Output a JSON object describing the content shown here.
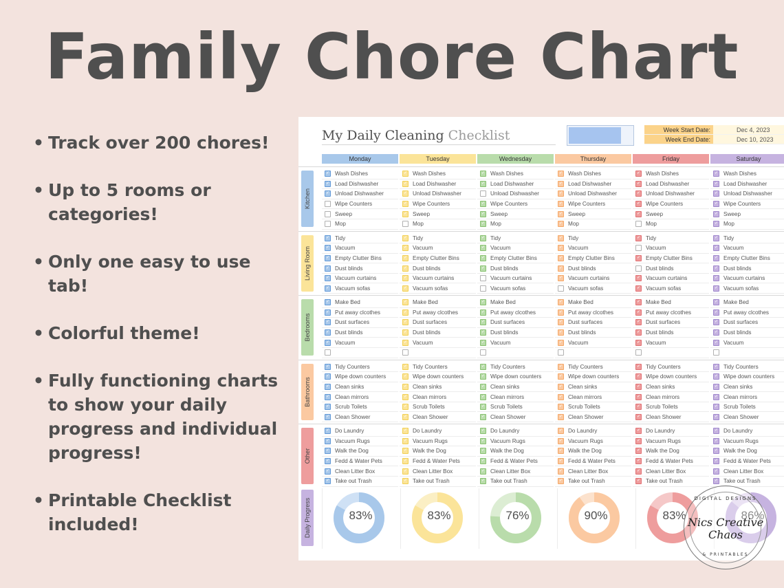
{
  "headline": "Family Chore Chart",
  "bullets": [
    "Track over 200 chores!",
    "Up to 5 rooms or categories!",
    "Only one easy to use tab!",
    "Colorful theme!",
    "Fully functioning charts to show your daily progress and individual progress!",
    "Printable Checklist included!"
  ],
  "sheet": {
    "title_main": "My Daily Cleaning",
    "title_muted": "Checklist",
    "week_start_label": "Week Start Date:",
    "week_start_value": "Dec 4, 2023",
    "week_end_label": "Week End Date:",
    "week_end_value": "Dec 10, 2023",
    "swatch_color": "#a6c4ef"
  },
  "days": [
    {
      "label": "Monday",
      "color": "#a8c8ea",
      "dark": "#5f97d6",
      "light": "#cfe1f5"
    },
    {
      "label": "Tuesday",
      "color": "#fbe499",
      "dark": "#f1cf52",
      "light": "#fbefc4"
    },
    {
      "label": "Wednesday",
      "color": "#b9dcab",
      "dark": "#86c06e",
      "light": "#dcedd3"
    },
    {
      "label": "Thursday",
      "color": "#fbc9a1",
      "dark": "#f5a766",
      "light": "#fce2cd"
    },
    {
      "label": "Friday",
      "color": "#ee9d9d",
      "dark": "#e06f72",
      "light": "#f5c8c8"
    },
    {
      "label": "Saturday",
      "color": "#c6b3e0",
      "dark": "#9e86cc",
      "light": "#e0d4ef"
    }
  ],
  "rooms": [
    {
      "name": "Kitchen",
      "color": "#a8c8ea",
      "chores": [
        "Wash Dishes",
        "Load Dishwasher",
        "Unload Dishwasher",
        "Wipe Counters",
        "Sweep",
        "Mop"
      ],
      "checked": [
        [
          1,
          1,
          1,
          0,
          0,
          0
        ],
        [
          1,
          1,
          1,
          1,
          1,
          0
        ],
        [
          1,
          1,
          0,
          1,
          1,
          1
        ],
        [
          1,
          1,
          1,
          1,
          1,
          1
        ],
        [
          1,
          1,
          1,
          1,
          1,
          0
        ],
        [
          1,
          1,
          1,
          1,
          1,
          1
        ]
      ]
    },
    {
      "name": "Living Room",
      "color": "#fbe499",
      "chores": [
        "Tidy",
        "Vacuum",
        "Empty Clutter Bins",
        "Dust blinds",
        "Vacuum curtains",
        "Vacuum sofas"
      ],
      "checked": [
        [
          1,
          1,
          1,
          1,
          1,
          1
        ],
        [
          1,
          1,
          1,
          1,
          1,
          1
        ],
        [
          1,
          1,
          1,
          1,
          0,
          0
        ],
        [
          1,
          1,
          1,
          1,
          1,
          0
        ],
        [
          1,
          0,
          1,
          0,
          1,
          1
        ],
        [
          1,
          1,
          1,
          1,
          1,
          1
        ]
      ]
    },
    {
      "name": "Bedrooms",
      "color": "#b9dcab",
      "chores": [
        "Make Bed",
        "Put away clcothes",
        "Dust surfaces",
        "Dust blinds",
        "Vacuum",
        ""
      ],
      "checked": [
        [
          1,
          1,
          1,
          1,
          1,
          0
        ],
        [
          1,
          1,
          1,
          1,
          1,
          0
        ],
        [
          1,
          1,
          1,
          1,
          1,
          0
        ],
        [
          1,
          1,
          1,
          1,
          1,
          0
        ],
        [
          1,
          1,
          1,
          1,
          1,
          0
        ],
        [
          1,
          1,
          1,
          1,
          1,
          0
        ]
      ]
    },
    {
      "name": "Bathrooms",
      "color": "#fbc9a1",
      "chores": [
        "Tidy Counters",
        "Wipe down counters",
        "Clean sinks",
        "Clean mirrors",
        "Scrub Toilets",
        "Clean Shower"
      ],
      "checked": [
        [
          1,
          1,
          1,
          1,
          1,
          1
        ],
        [
          1,
          1,
          1,
          1,
          1,
          1
        ],
        [
          1,
          1,
          1,
          1,
          1,
          1
        ],
        [
          1,
          1,
          1,
          1,
          1,
          1
        ],
        [
          1,
          1,
          1,
          1,
          1,
          1
        ],
        [
          1,
          1,
          1,
          1,
          1,
          1
        ]
      ]
    },
    {
      "name": "Other",
      "color": "#ee9d9d",
      "chores": [
        "Do Laundry",
        "Vacuum Rugs",
        "Walk the Dog",
        "Fedd & Water Pets",
        "Clean Litter Box",
        "Take out Trash"
      ],
      "checked": [
        [
          1,
          1,
          1,
          1,
          1,
          1
        ],
        [
          1,
          1,
          1,
          1,
          1,
          1
        ],
        [
          1,
          1,
          1,
          1,
          1,
          1
        ],
        [
          1,
          1,
          1,
          1,
          1,
          1
        ],
        [
          1,
          1,
          1,
          1,
          1,
          1
        ],
        [
          1,
          1,
          1,
          1,
          1,
          1
        ]
      ]
    }
  ],
  "progress": {
    "label": "Daily Progress",
    "label_color": "#c6b3e0",
    "values": [
      {
        "text": "83%",
        "value": 0.83
      },
      {
        "text": "83%",
        "value": 0.83
      },
      {
        "text": "76%",
        "value": 0.76
      },
      {
        "text": "90%",
        "value": 0.9
      },
      {
        "text": "83%",
        "value": 0.83
      },
      {
        "text": "86%",
        "value": 0.86
      }
    ]
  },
  "stamp": {
    "top": "DIGITAL DESIGNS",
    "main": "Nics Creative Chaos",
    "bottom": "& PRINTABLES"
  }
}
